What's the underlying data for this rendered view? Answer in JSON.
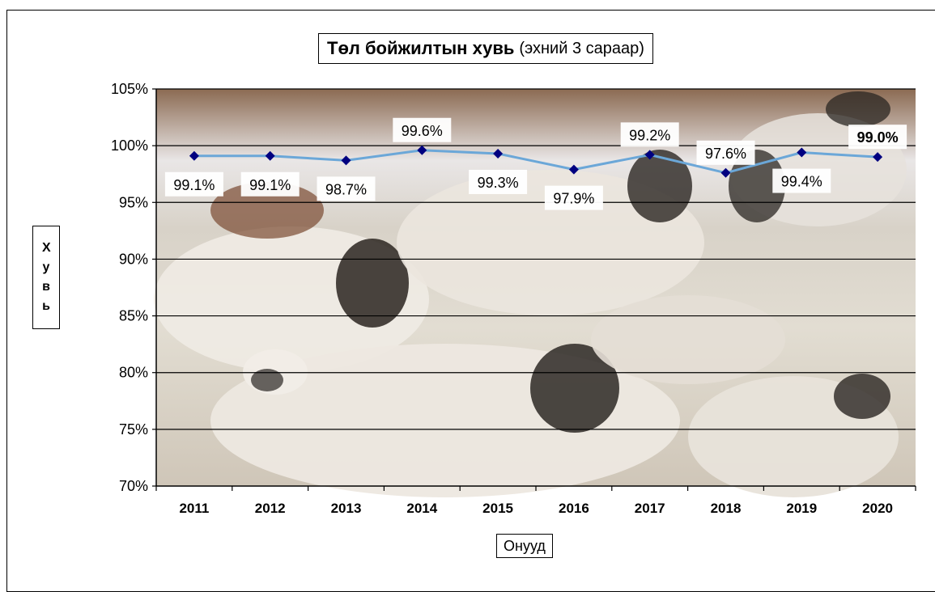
{
  "chart_data": {
    "type": "line",
    "title": "Төл бойжилтын хувь",
    "subtitle": "(эхний 3 сараар)",
    "xlabel": "Онууд",
    "ylabel": "Хувь",
    "categories": [
      "2011",
      "2012",
      "2013",
      "2014",
      "2015",
      "2016",
      "2017",
      "2018",
      "2019",
      "2020"
    ],
    "series": [
      {
        "values": [
          99.1,
          99.1,
          98.7,
          99.6,
          99.3,
          97.9,
          99.2,
          97.6,
          99.4,
          99.0
        ],
        "labels": [
          "99.1%",
          "99.1%",
          "98.7%",
          "99.6%",
          "99.3%",
          "97.9%",
          "99.2%",
          "97.6%",
          "99.4%",
          "99.0%"
        ],
        "line_color": "#6ba7d8",
        "marker_color": "#000080"
      }
    ],
    "ylim": [
      70,
      105
    ],
    "yticks": [
      "70%",
      "75%",
      "80%",
      "85%",
      "90%",
      "95%",
      "100%",
      "105%"
    ],
    "grid": true,
    "legend": "none"
  }
}
